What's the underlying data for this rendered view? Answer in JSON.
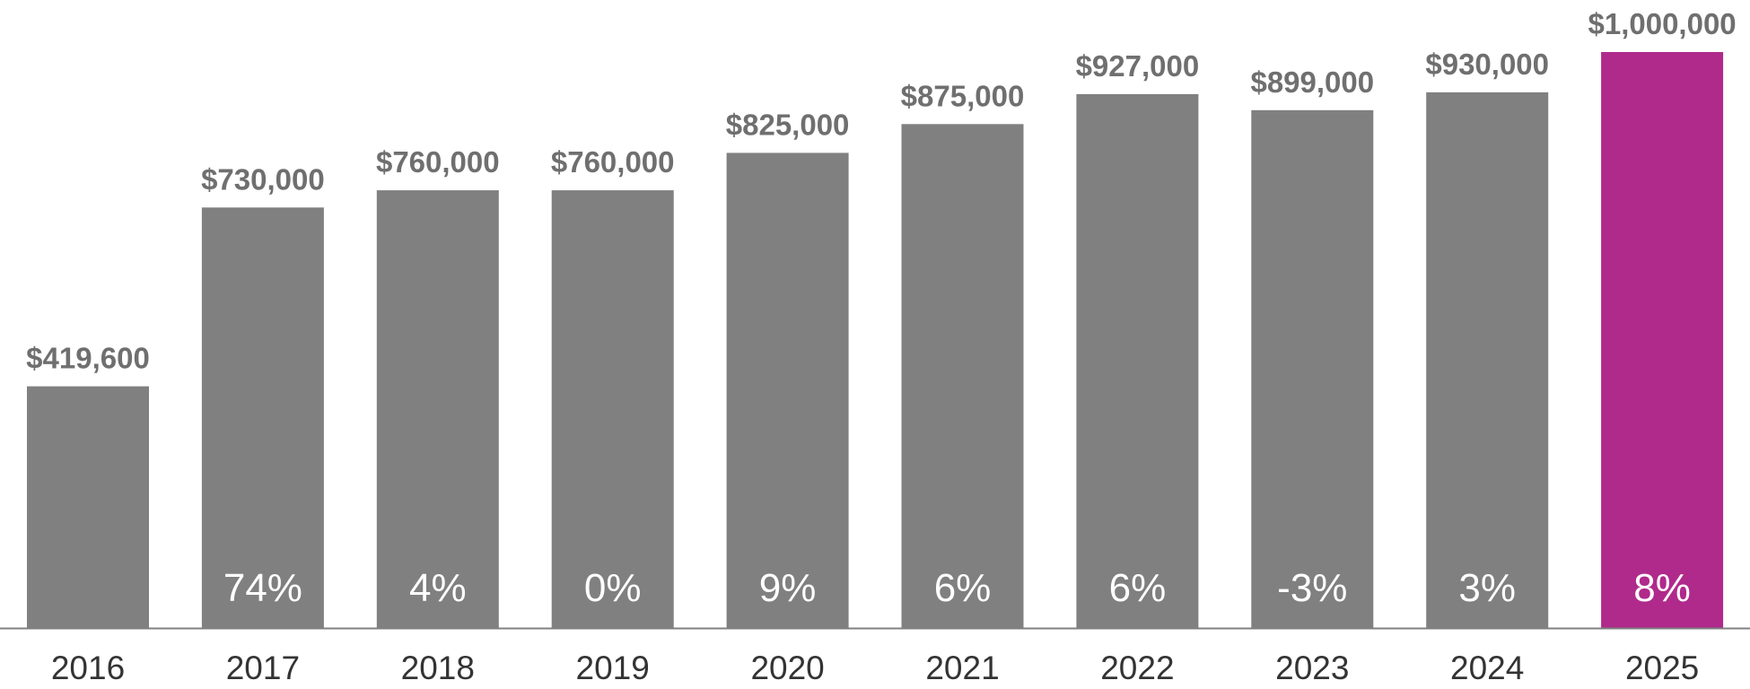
{
  "chart_data": {
    "type": "bar",
    "categories": [
      "2016",
      "2017",
      "2018",
      "2019",
      "2020",
      "2021",
      "2022",
      "2023",
      "2024",
      "2025"
    ],
    "values": [
      419600,
      730000,
      760000,
      760000,
      825000,
      875000,
      927000,
      899000,
      930000,
      1000000
    ],
    "value_labels": [
      "$419,600",
      "$730,000",
      "$760,000",
      "$760,000",
      "$825,000",
      "$875,000",
      "$927,000",
      "$899,000",
      "$930,000",
      "$1,000,000"
    ],
    "change_labels": [
      "",
      "74%",
      "4%",
      "0%",
      "9%",
      "6%",
      "6%",
      "-3%",
      "3%",
      "8%"
    ],
    "title": "",
    "xlabel": "",
    "ylabel": "",
    "ylim": [
      0,
      1000000
    ],
    "grid": false,
    "legend": "none",
    "colors": {
      "bar": "#808080",
      "highlight": "#b02a8c",
      "value_label": "#6f6f6f",
      "change_label": "#ffffff",
      "tick_label": "#333333",
      "axis": "#808080"
    },
    "highlight_index": 9
  }
}
